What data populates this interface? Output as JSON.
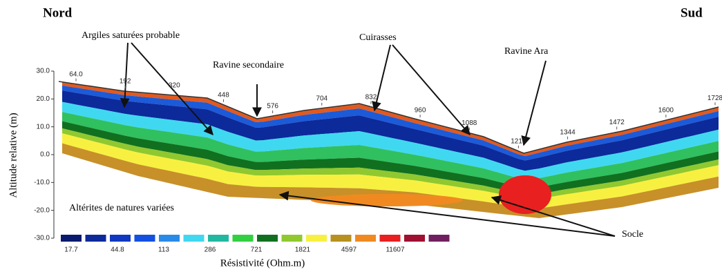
{
  "chart_data": {
    "type": "resistivity-section",
    "title_left": "Nord",
    "title_right": "Sud",
    "ylabel": "Altitude relative (m)",
    "ylim": [
      -30,
      30
    ],
    "yticks": [
      {
        "value": 30,
        "label": "30.0"
      },
      {
        "value": 20,
        "label": "20.0"
      },
      {
        "value": 10,
        "label": "10.0"
      },
      {
        "value": 0,
        "label": "0.0"
      },
      {
        "value": -10,
        "label": "-10.0"
      },
      {
        "value": -20,
        "label": "-20.0"
      },
      {
        "value": -30,
        "label": "-30.0"
      }
    ],
    "xlim": [
      64,
      1728
    ],
    "xticks": [
      {
        "value": 64,
        "label": "64.0"
      },
      192,
      320,
      448,
      576,
      704,
      832,
      960,
      1088,
      1216,
      1344,
      1472,
      1600,
      1728
    ],
    "legend": {
      "title": "Résistivité (Ohm.m)",
      "colors": [
        "#0a1a6e",
        "#0c2a9a",
        "#1038c0",
        "#1450e0",
        "#2a8ae8",
        "#40d8f0",
        "#20b8a0",
        "#30d040",
        "#107020",
        "#90c830",
        "#f8f040",
        "#b89020",
        "#f08a20",
        "#e82020",
        "#a01030",
        "#702060"
      ],
      "labels": [
        17.7,
        44.8,
        113,
        286,
        721,
        1821,
        4597,
        11607
      ]
    },
    "annotations": [
      "Argiles saturées probable",
      "Ravine secondaire",
      "Cuirasses",
      "Ravine Ara",
      "Altérites de natures variées",
      "Socle"
    ]
  }
}
